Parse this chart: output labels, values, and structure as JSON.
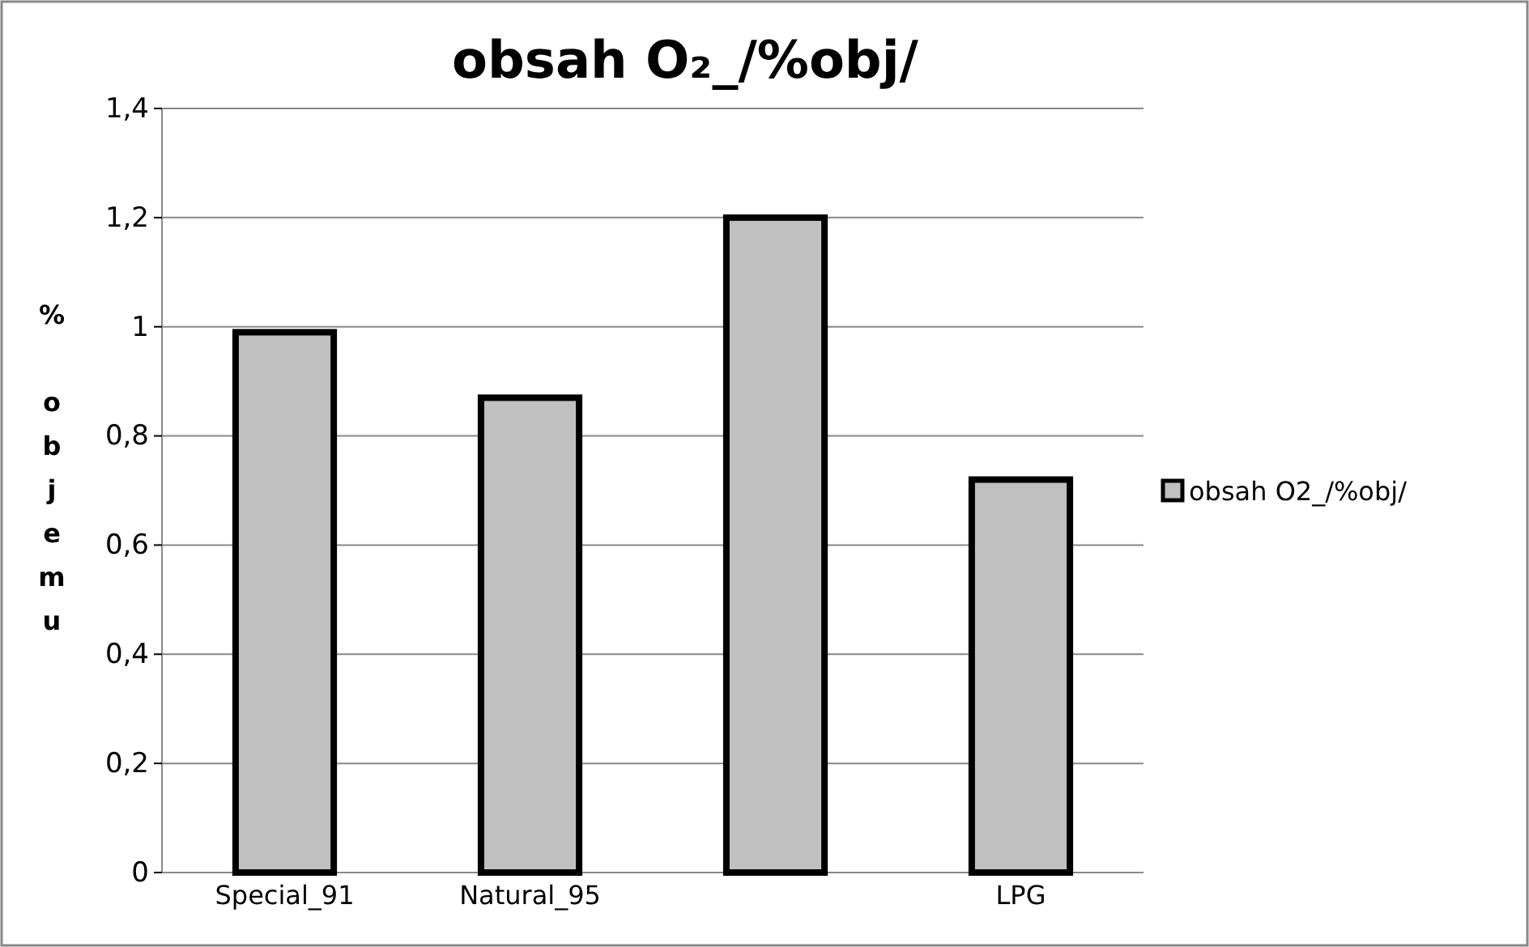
{
  "chart_data": {
    "type": "bar",
    "title": "obsah O₂_/%obj/",
    "ylabel": "% objemu",
    "categories": [
      "Special_91",
      "Natural_95",
      null,
      "LPG"
    ],
    "series": [
      {
        "name": "obsah O2_/%obj/",
        "color": "#c0c0c0",
        "values": [
          0.99,
          0.87,
          1.2,
          0.72
        ]
      }
    ],
    "ylim": [
      0,
      1.4
    ],
    "yticks": [
      0,
      {
        "value": 0.2,
        "label": "0,2"
      },
      {
        "value": 0.4,
        "label": "0,4"
      },
      {
        "value": 0.6,
        "label": "0,6"
      },
      {
        "value": 0.8,
        "label": "0,8"
      },
      1,
      {
        "value": 1.2,
        "label": "1,2"
      },
      {
        "value": 1.4,
        "label": "1,4"
      }
    ],
    "grid": "y",
    "legend": "right"
  }
}
